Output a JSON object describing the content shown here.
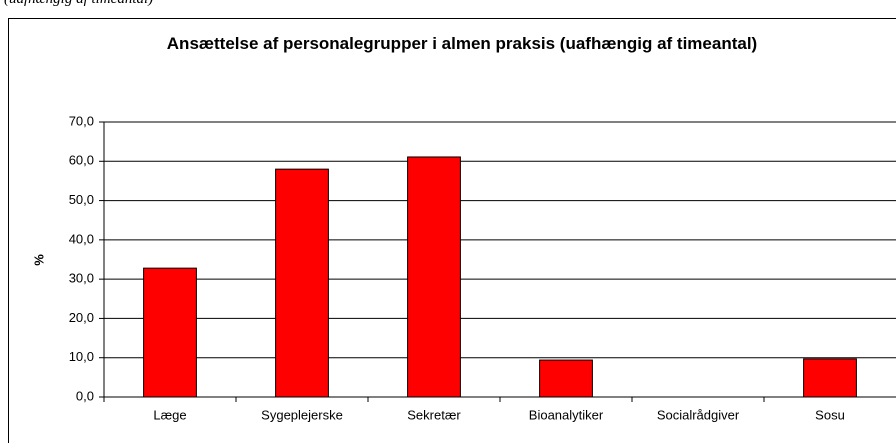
{
  "caption": "(uafhængig af timeantal)",
  "chart_data": {
    "type": "bar",
    "title": "Ansættelse af personalegrupper i almen praksis (uafhængig af timeantal)",
    "y_label": "%",
    "categories": [
      "Læge",
      "Sygeplejerske",
      "Sekretær",
      "Bioanalytiker",
      "Socialrådgiver",
      "Sosu"
    ],
    "values": [
      32.8,
      58.0,
      61.1,
      9.4,
      0,
      9.7
    ],
    "color": "#ff0000",
    "ylim": [
      0,
      70
    ],
    "yticks": [
      {
        "value": 0,
        "label": "0,0"
      },
      {
        "value": 10,
        "label": "10,0"
      },
      {
        "value": 20,
        "label": "20,0"
      },
      {
        "value": 30,
        "label": "30,0"
      },
      {
        "value": 40,
        "label": "40,0"
      },
      {
        "value": 50,
        "label": "50,0"
      },
      {
        "value": 60,
        "label": "60,0"
      },
      {
        "value": 70,
        "label": "70,0"
      }
    ],
    "grid": true
  }
}
